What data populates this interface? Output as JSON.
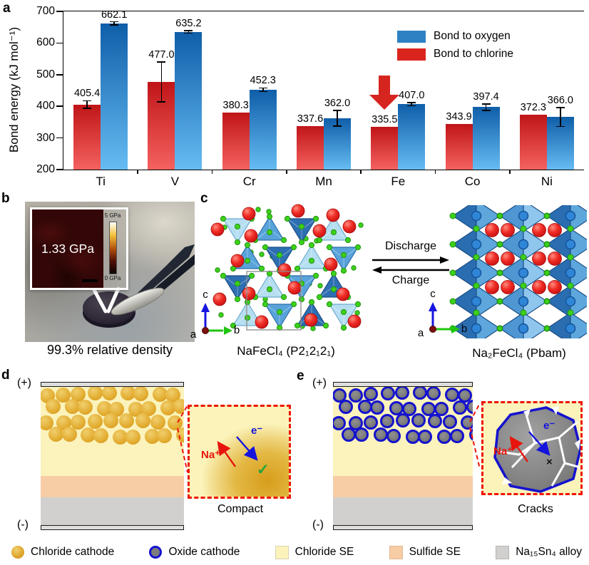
{
  "panel_labels": {
    "a": "a",
    "b": "b",
    "c": "c",
    "d": "d",
    "e": "e"
  },
  "chart_data": {
    "type": "bar",
    "title": "",
    "ylabel": "Bond energy (kJ mol⁻¹)",
    "xlabel": "",
    "categories": [
      "Ti",
      "V",
      "Cr",
      "Mn",
      "Fe",
      "Co",
      "Ni"
    ],
    "ylim": [
      200,
      700
    ],
    "yticks": [
      200,
      300,
      400,
      500,
      600,
      700
    ],
    "grid": false,
    "legend_position": "top-right",
    "series": [
      {
        "name": "Bond to chlorine",
        "values": [
          405.4,
          477.0,
          380.3,
          337.6,
          335.5,
          343.9,
          372.3
        ],
        "errors": [
          12,
          63,
          0,
          0,
          0,
          0,
          0
        ],
        "color_top": "#c01518",
        "color_bottom": "#f4625f"
      },
      {
        "name": "Bond to oxygen",
        "values": [
          662.1,
          635.2,
          452.3,
          362.0,
          407.0,
          397.4,
          366.0
        ],
        "errors": [
          5,
          4,
          6,
          25,
          5,
          10,
          30
        ],
        "color_top": "#0f5ea9",
        "color_bottom": "#66bcf2"
      }
    ],
    "legend": [
      {
        "label": "Bond to oxygen",
        "color": "#2e82c4"
      },
      {
        "label": "Bond to chlorine",
        "color": "#da251f"
      }
    ],
    "annotation": {
      "type": "down-arrow",
      "category": "Fe",
      "series": "Bond to chlorine",
      "color": "#d6251f"
    }
  },
  "panel_b": {
    "afm_value": "1.33 GPa",
    "colorbar_max": "5 GPa",
    "colorbar_min": "0 GPa",
    "caption": "99.3% relative density"
  },
  "panel_c": {
    "left_formula": "NaFeCl₄ (P2₁2₁2₁)",
    "right_formula": "Na₂FeCl₄ (Pbam)",
    "discharge_label": "Discharge",
    "charge_label": "Charge",
    "axis": {
      "a": "a",
      "b": "b",
      "c": "c"
    }
  },
  "panel_d": {
    "plus": "(+)",
    "minus": "(-)",
    "na_ion": "Na⁺",
    "electron": "e⁻",
    "check": "✓",
    "caption": "Compact"
  },
  "panel_e": {
    "plus": "(+)",
    "minus": "(-)",
    "na_ion": "Na⁺",
    "electron": "e⁻",
    "cross": "×",
    "caption": "Cracks"
  },
  "legend": {
    "items": [
      {
        "icon": "chloride-cathode-icon",
        "label": "Chloride cathode"
      },
      {
        "icon": "oxide-cathode-icon",
        "label": "Oxide cathode"
      },
      {
        "icon": "chloride-se-icon",
        "label": "Chloride SE"
      },
      {
        "icon": "sulfide-se-icon",
        "label": "Sulfide SE"
      },
      {
        "icon": "alloy-icon",
        "label": "Na₁₅Sn₄ alloy"
      }
    ]
  },
  "colors": {
    "oxygen_blue": "#2e82c4",
    "chlorine_red": "#da251f",
    "highlight_red": "#ee1408",
    "chloride_se": "#fbf3bb",
    "sulfide_se": "#f7cda6",
    "alloy_gray": "#d1d0ce",
    "oxide_border_blue": "#1512cf"
  }
}
